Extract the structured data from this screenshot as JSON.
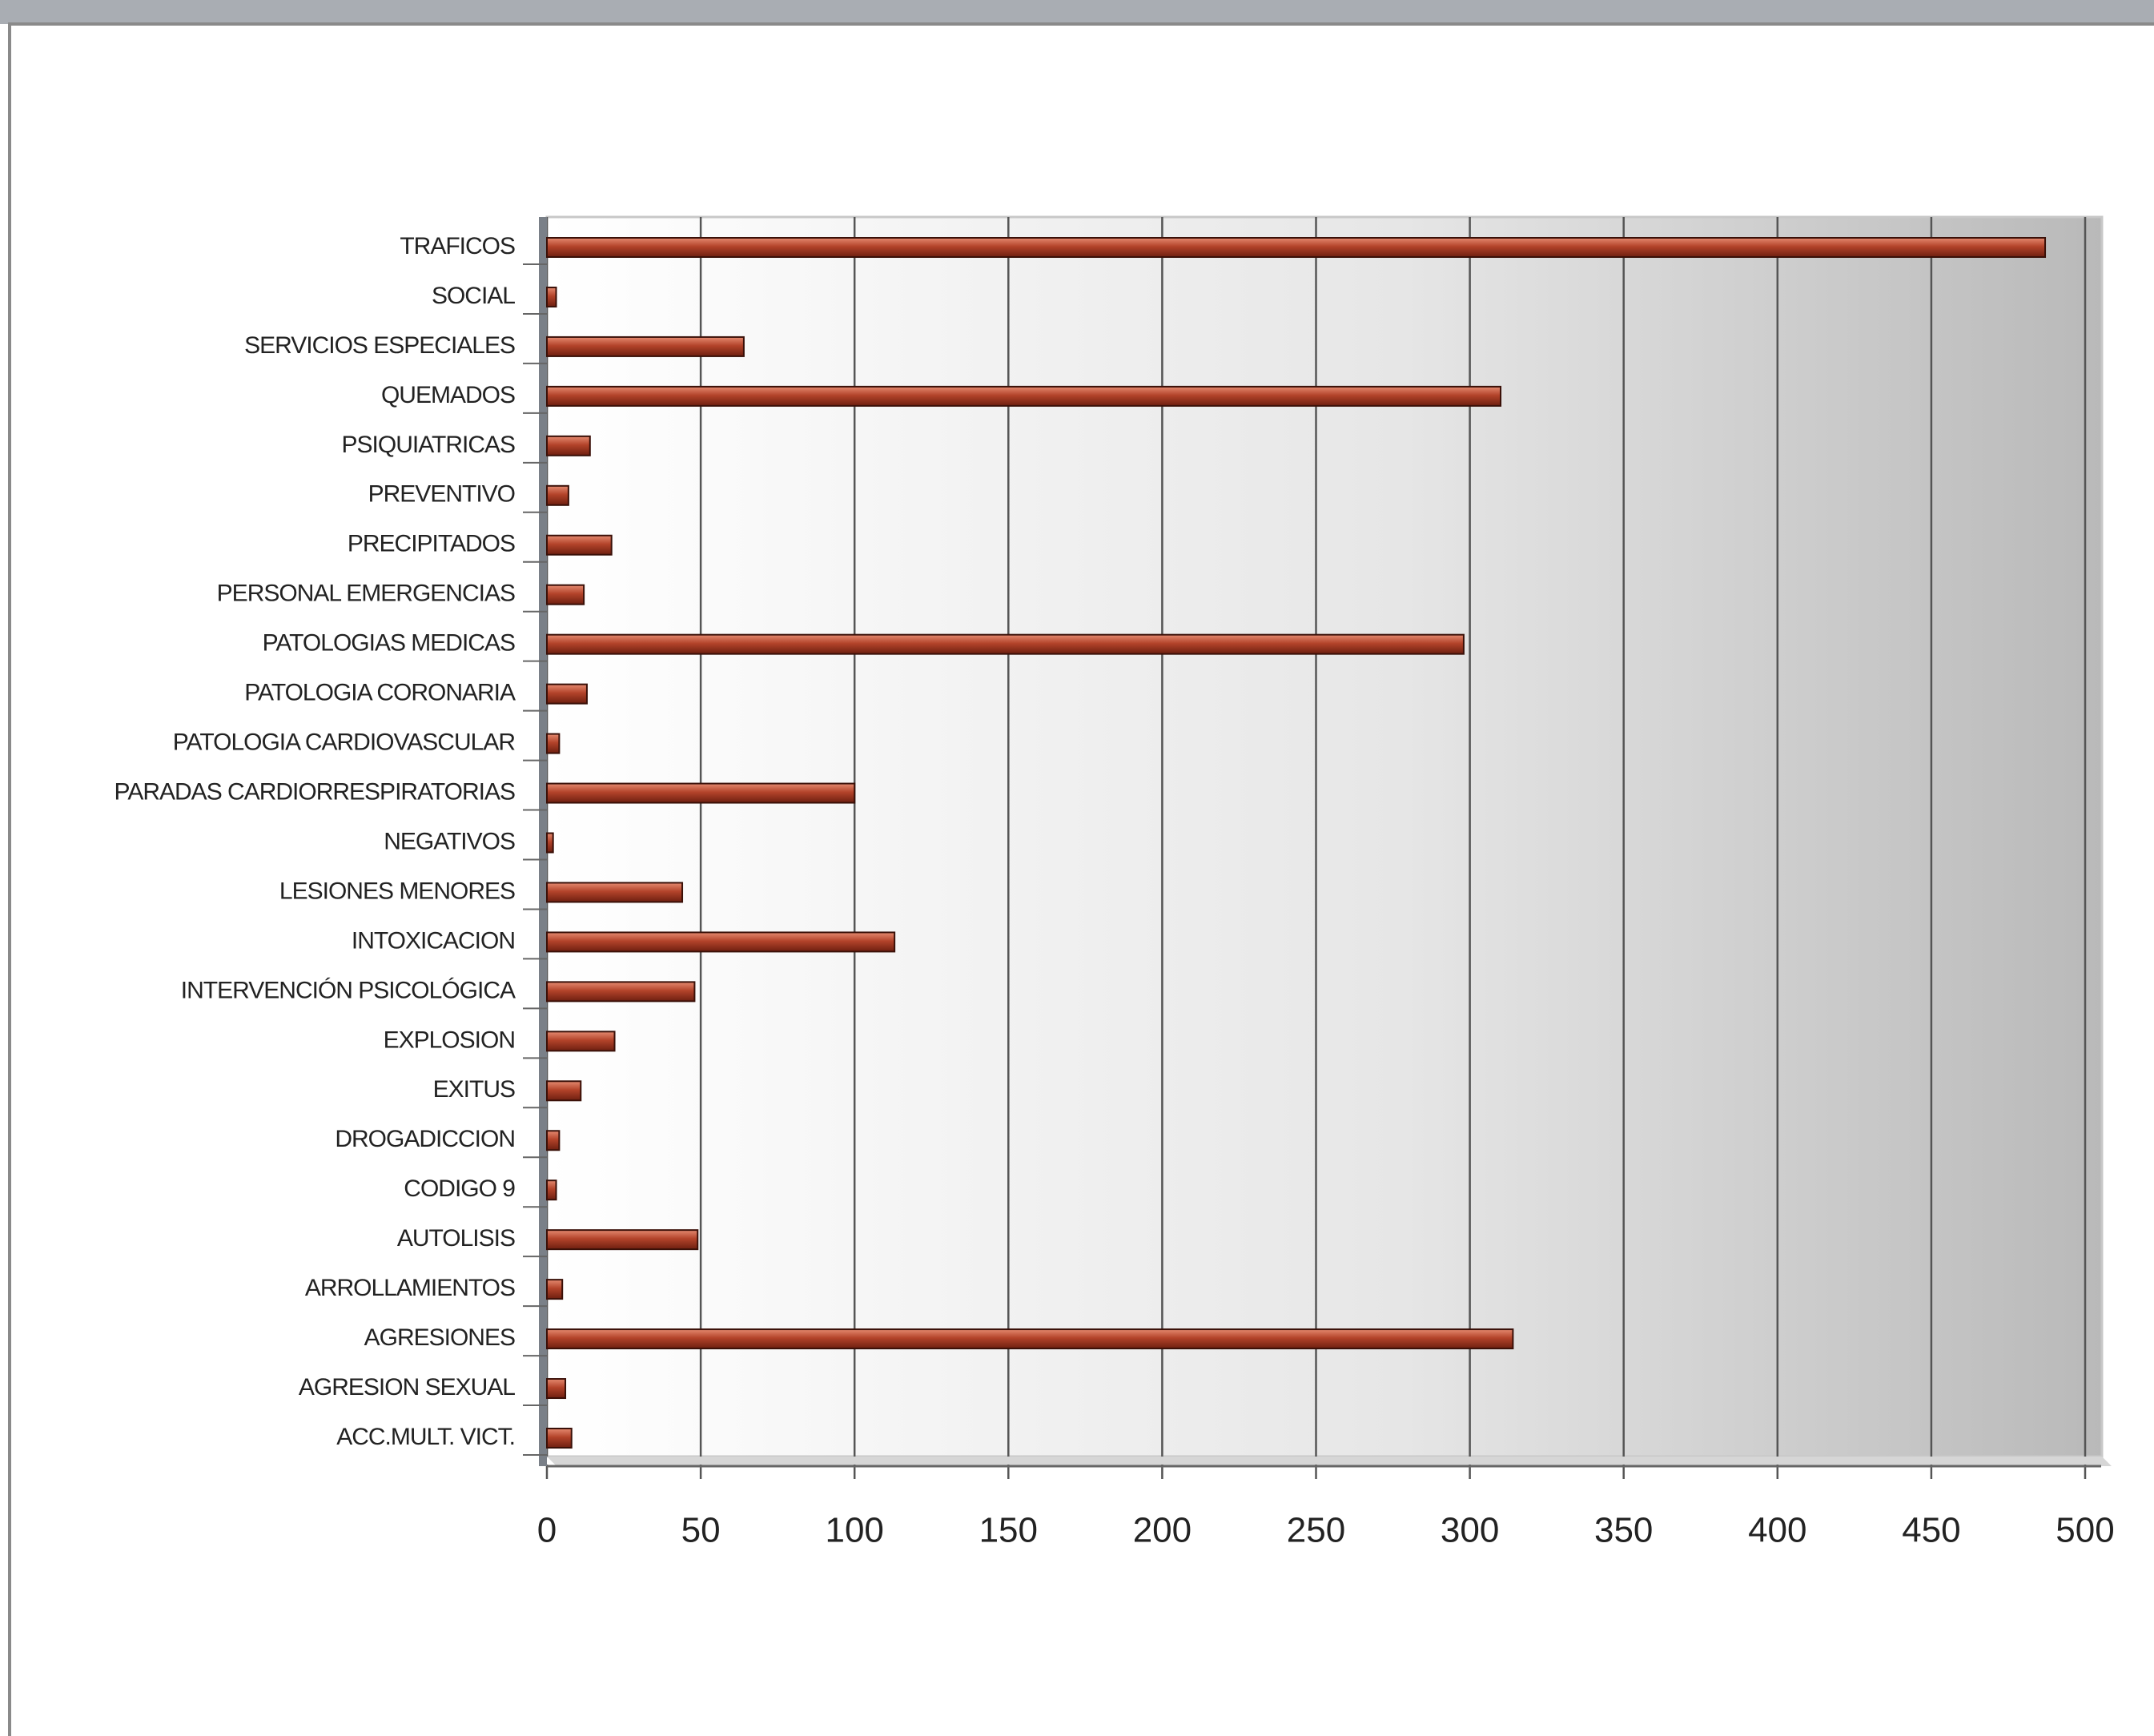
{
  "chart_data": {
    "type": "barh",
    "categories": [
      "TRAFICOS",
      "SOCIAL",
      "SERVICIOS ESPECIALES",
      "QUEMADOS",
      "PSIQUIATRICAS",
      "PREVENTIVO",
      "PRECIPITADOS",
      "PERSONAL EMERGENCIAS",
      "PATOLOGIAS MEDICAS",
      "PATOLOGIA CORONARIA",
      "PATOLOGIA CARDIOVASCULAR",
      "PARADAS CARDIORRESPIRATORIAS",
      "NEGATIVOS",
      "LESIONES MENORES",
      "INTOXICACION",
      "INTERVENCIÓN PSICOLÓGICA",
      "EXPLOSION",
      "EXITUS",
      "DROGADICCION",
      "CODIGO 9",
      "AUTOLISIS",
      "ARROLLAMIENTOS",
      "AGRESIONES",
      "AGRESION SEXUAL",
      "ACC.MULT. VICT."
    ],
    "values": [
      487,
      3,
      64,
      310,
      14,
      7,
      21,
      12,
      298,
      13,
      4,
      100,
      2,
      44,
      113,
      48,
      22,
      11,
      4,
      3,
      49,
      5,
      314,
      6,
      8
    ],
    "color": "#b3432a",
    "xlim": [
      0,
      500
    ],
    "xticks": [
      0,
      50,
      100,
      150,
      200,
      250,
      300,
      350,
      400,
      450,
      500
    ],
    "grid": true
  }
}
